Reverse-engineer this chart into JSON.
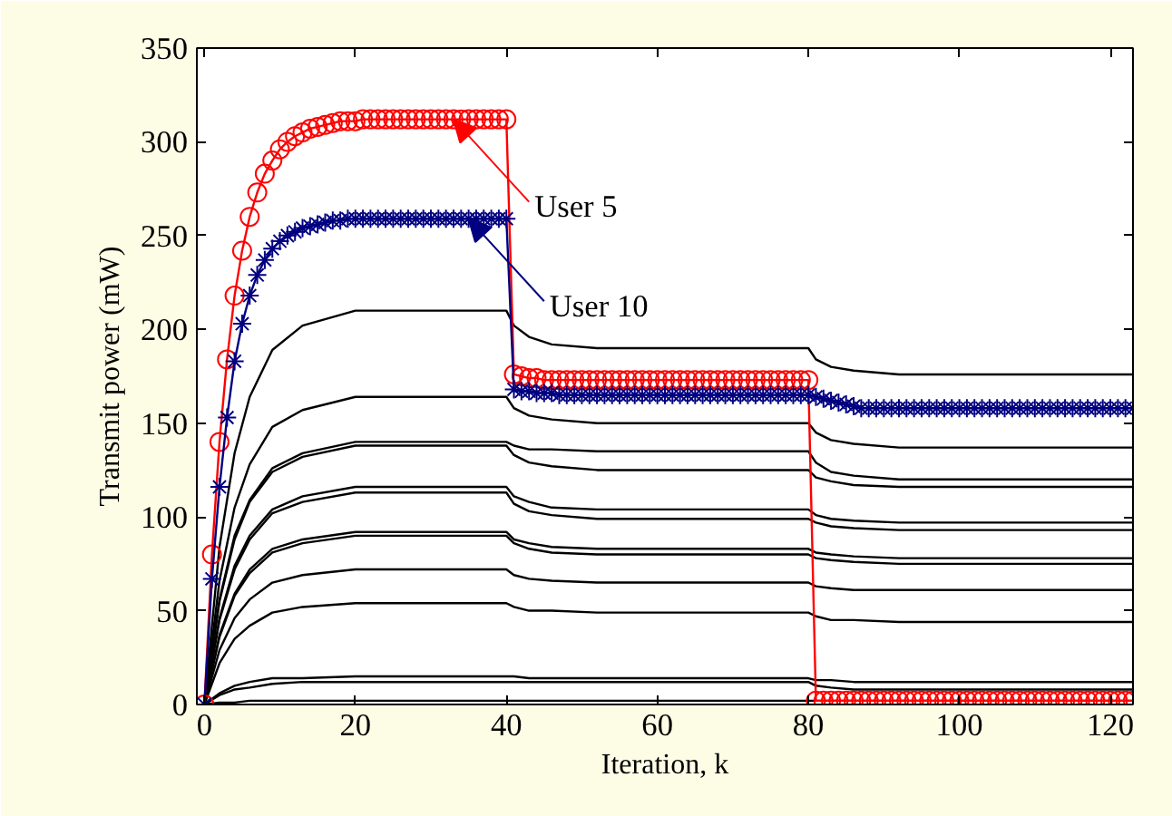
{
  "chart_data": {
    "type": "line",
    "xlabel": "Iteration, k",
    "ylabel": "Transmit power (mW)",
    "xlim": [
      -1,
      123
    ],
    "ylim": [
      0,
      350
    ],
    "xticks": [
      0,
      20,
      40,
      60,
      80,
      100,
      120
    ],
    "yticks": [
      0,
      50,
      100,
      150,
      200,
      250,
      300,
      350
    ],
    "grid": false,
    "x": [
      0,
      1,
      2,
      3,
      4,
      5,
      6,
      7,
      8,
      9,
      10,
      11,
      12,
      13,
      14,
      15,
      16,
      17,
      18,
      19,
      20,
      21,
      22,
      23,
      24,
      25,
      26,
      27,
      28,
      29,
      30,
      31,
      32,
      33,
      34,
      35,
      36,
      37,
      38,
      39,
      40,
      41,
      42,
      43,
      44,
      45,
      46,
      47,
      48,
      49,
      50,
      51,
      52,
      53,
      54,
      55,
      56,
      57,
      58,
      59,
      60,
      61,
      62,
      63,
      64,
      65,
      66,
      67,
      68,
      69,
      70,
      71,
      72,
      73,
      74,
      75,
      76,
      77,
      78,
      79,
      80,
      81,
      82,
      83,
      84,
      85,
      86,
      87,
      88,
      89,
      90,
      91,
      92,
      93,
      94,
      95,
      96,
      97,
      98,
      99,
      100,
      101,
      102,
      103,
      104,
      105,
      106,
      107,
      108,
      109,
      110,
      111,
      112,
      113,
      114,
      115,
      116,
      117,
      118,
      119,
      120,
      121,
      122,
      123
    ],
    "series": [
      {
        "color": "#000000",
        "marker": "none",
        "x": [
          0,
          2,
          4,
          6,
          9,
          13,
          20,
          40,
          41,
          43,
          46,
          52,
          80,
          81,
          83,
          86,
          92,
          123
        ],
        "values": [
          0,
          84,
          134,
          164,
          189,
          202,
          210,
          210,
          202,
          196,
          192,
          190,
          190,
          184,
          180,
          178,
          176,
          176
        ]
      },
      {
        "color": "#000000",
        "marker": "none",
        "x": [
          0,
          2,
          4,
          6,
          9,
          13,
          20,
          40,
          41,
          43,
          46,
          52,
          80,
          81,
          83,
          86,
          92,
          123
        ],
        "values": [
          0,
          66,
          105,
          128,
          148,
          157,
          164,
          164,
          158,
          154,
          152,
          150,
          150,
          145,
          141,
          139,
          137,
          137
        ]
      },
      {
        "color": "#000000",
        "marker": "none",
        "x": [
          0,
          2,
          4,
          6,
          9,
          13,
          20,
          40,
          41,
          43,
          46,
          52,
          80,
          81,
          83,
          86,
          92,
          123
        ],
        "values": [
          0,
          56,
          90,
          109,
          126,
          134,
          140,
          140,
          138,
          136,
          136,
          135,
          135,
          129,
          124,
          122,
          120,
          120
        ]
      },
      {
        "color": "#000000",
        "marker": "none",
        "x": [
          0,
          2,
          4,
          6,
          9,
          13,
          20,
          40,
          41,
          43,
          46,
          52,
          80,
          81,
          83,
          86,
          92,
          123
        ],
        "values": [
          0,
          55,
          88,
          108,
          124,
          132,
          138,
          138,
          133,
          129,
          127,
          125,
          125,
          121,
          119,
          117,
          116,
          116
        ]
      },
      {
        "color": "#000000",
        "marker": "none",
        "x": [
          0,
          2,
          4,
          6,
          9,
          13,
          20,
          40,
          41,
          43,
          46,
          52,
          80,
          81,
          83,
          86,
          92,
          123
        ],
        "values": [
          0,
          46,
          74,
          90,
          104,
          111,
          116,
          116,
          111,
          108,
          105,
          104,
          104,
          101,
          99,
          98,
          97,
          97
        ]
      },
      {
        "color": "#000000",
        "marker": "none",
        "x": [
          0,
          2,
          4,
          6,
          9,
          13,
          20,
          40,
          41,
          43,
          46,
          52,
          80,
          81,
          83,
          86,
          92,
          123
        ],
        "values": [
          0,
          45,
          72,
          88,
          102,
          108,
          113,
          113,
          107,
          103,
          101,
          99,
          99,
          97,
          95,
          94,
          93,
          93
        ]
      },
      {
        "color": "#000000",
        "marker": "none",
        "x": [
          0,
          2,
          4,
          6,
          9,
          13,
          20,
          40,
          41,
          43,
          46,
          52,
          80,
          81,
          83,
          86,
          92,
          123
        ],
        "values": [
          0,
          37,
          59,
          72,
          83,
          88,
          92,
          92,
          88,
          86,
          84,
          83,
          83,
          81,
          80,
          79,
          78,
          78
        ]
      },
      {
        "color": "#000000",
        "marker": "none",
        "x": [
          0,
          2,
          4,
          6,
          9,
          13,
          20,
          40,
          41,
          43,
          46,
          52,
          80,
          81,
          83,
          86,
          92,
          123
        ],
        "values": [
          0,
          36,
          58,
          70,
          81,
          86,
          90,
          90,
          86,
          83,
          81,
          80,
          80,
          78,
          77,
          76,
          75,
          75
        ]
      },
      {
        "color": "#000000",
        "marker": "none",
        "x": [
          0,
          2,
          4,
          6,
          9,
          13,
          20,
          40,
          41,
          43,
          46,
          52,
          80,
          81,
          83,
          86,
          92,
          123
        ],
        "values": [
          0,
          29,
          46,
          56,
          65,
          69,
          72,
          72,
          69,
          67,
          66,
          65,
          65,
          63,
          62,
          61,
          61,
          61
        ]
      },
      {
        "color": "#000000",
        "marker": "none",
        "x": [
          0,
          2,
          4,
          6,
          9,
          13,
          20,
          40,
          41,
          43,
          46,
          52,
          80,
          81,
          83,
          86,
          92,
          123
        ],
        "values": [
          0,
          22,
          35,
          42,
          49,
          52,
          54,
          54,
          52,
          50,
          50,
          49,
          49,
          47,
          45,
          45,
          44,
          44
        ]
      },
      {
        "color": "#000000",
        "marker": "none",
        "x": [
          0,
          2,
          4,
          6,
          9,
          13,
          20,
          40,
          41,
          43,
          46,
          52,
          80,
          81,
          83,
          86,
          92,
          123
        ],
        "values": [
          0,
          6,
          10,
          12,
          14,
          14,
          15,
          15,
          15,
          14,
          14,
          14,
          14,
          13,
          13,
          12,
          12,
          12
        ]
      },
      {
        "color": "#000000",
        "marker": "none",
        "x": [
          0,
          2,
          4,
          6,
          9,
          13,
          20,
          40,
          41,
          43,
          46,
          52,
          80,
          81,
          83,
          86,
          92,
          123
        ],
        "values": [
          0,
          5,
          8,
          9,
          11,
          12,
          12,
          12,
          12,
          12,
          12,
          12,
          12,
          10,
          9,
          8,
          8,
          8
        ]
      },
      {
        "color": "#000000",
        "marker": "none",
        "x": [
          0,
          2,
          4,
          6,
          9,
          13,
          20,
          40,
          41,
          43,
          46,
          52,
          80,
          81,
          83,
          86,
          92,
          123
        ],
        "values": [
          0,
          1,
          1,
          2,
          2,
          2,
          2,
          2,
          2,
          2,
          2,
          2,
          2,
          2,
          2,
          2,
          2,
          2
        ]
      },
      {
        "color": "#ff0000",
        "marker": "circle",
        "values": [
          0,
          80,
          140,
          184,
          218,
          242,
          260,
          273,
          283,
          290,
          296,
          300,
          303,
          305,
          307,
          308,
          309,
          310,
          311,
          311,
          311,
          312,
          312,
          312,
          312,
          312,
          312,
          312,
          312,
          312,
          312,
          312,
          312,
          312,
          312,
          312,
          312,
          312,
          312,
          312,
          312,
          176,
          175,
          174,
          174,
          173,
          173,
          173,
          173,
          173,
          173,
          173,
          173,
          173,
          173,
          173,
          173,
          173,
          173,
          173,
          173,
          173,
          173,
          173,
          173,
          173,
          173,
          173,
          173,
          173,
          173,
          173,
          173,
          173,
          173,
          173,
          173,
          173,
          173,
          173,
          173,
          2,
          2,
          2,
          2,
          2,
          2,
          2,
          2,
          2,
          2,
          2,
          2,
          2,
          2,
          2,
          2,
          2,
          2,
          2,
          2,
          2,
          2,
          2,
          2,
          2,
          2,
          2,
          2,
          2,
          2,
          2,
          2,
          2,
          2,
          2,
          2,
          2,
          2,
          2,
          2,
          2,
          2,
          2
        ]
      },
      {
        "color": "#000080",
        "marker": "cross",
        "values": [
          0,
          67,
          116,
          153,
          183,
          203,
          218,
          229,
          237,
          243,
          247,
          250,
          252,
          254,
          255,
          256,
          257,
          258,
          258,
          259,
          259,
          259,
          259,
          259,
          259,
          259,
          259,
          259,
          259,
          259,
          259,
          259,
          259,
          259,
          259,
          259,
          259,
          259,
          259,
          259,
          259,
          168,
          167,
          167,
          166,
          166,
          166,
          165,
          165,
          165,
          165,
          165,
          165,
          165,
          165,
          165,
          165,
          165,
          165,
          165,
          165,
          165,
          165,
          165,
          165,
          165,
          165,
          165,
          165,
          165,
          165,
          165,
          165,
          165,
          165,
          165,
          165,
          165,
          165,
          165,
          165,
          164,
          163,
          162,
          161,
          160,
          159,
          158,
          158,
          158,
          158,
          158,
          158,
          158,
          158,
          158,
          158,
          158,
          158,
          158,
          158,
          158,
          158,
          158,
          158,
          158,
          158,
          158,
          158,
          158,
          158,
          158,
          158,
          158,
          158,
          158,
          158,
          158,
          158,
          158,
          158,
          158,
          158,
          158
        ]
      }
    ],
    "annotations": [
      {
        "text": "User 5",
        "x": 33,
        "y": 312
      },
      {
        "text": "User 10",
        "x": 35,
        "y": 259
      }
    ]
  }
}
